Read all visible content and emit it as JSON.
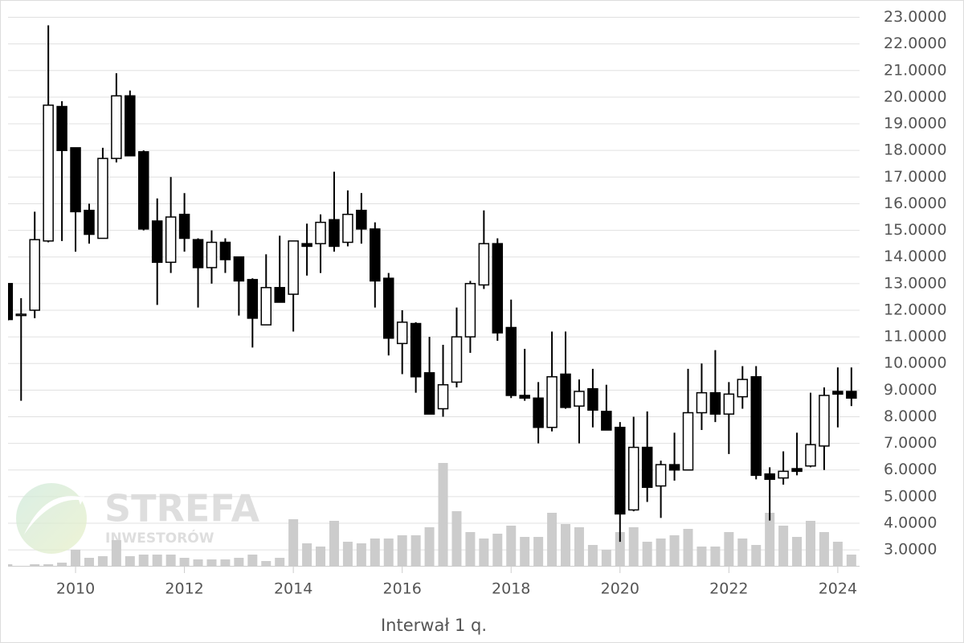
{
  "chart_data": {
    "type": "candlestick",
    "x_label": "Interwał 1 q.",
    "watermark": {
      "title": "STREFA",
      "subtitle": "INWESTORÓW"
    },
    "up_color": "#ffffff",
    "down_color": "#000000",
    "edge_color": "#000000",
    "volume_color": "#cccccc",
    "grid": true,
    "x": [
      2008.75,
      2009,
      2009.25,
      2009.5,
      2009.75,
      2010,
      2010.25,
      2010.5,
      2010.75,
      2011,
      2011.25,
      2011.5,
      2011.75,
      2012,
      2012.25,
      2012.5,
      2012.75,
      2013,
      2013.25,
      2013.5,
      2013.75,
      2014,
      2014.25,
      2014.5,
      2014.75,
      2015,
      2015.25,
      2015.5,
      2015.75,
      2016,
      2016.25,
      2016.5,
      2016.75,
      2017,
      2017.25,
      2017.5,
      2017.75,
      2018,
      2018.25,
      2018.5,
      2018.75,
      2019,
      2019.25,
      2019.5,
      2019.75,
      2020,
      2020.25,
      2020.5,
      2020.75,
      2021,
      2021.25,
      2021.5,
      2021.75,
      2022,
      2022.25,
      2022.5,
      2022.75,
      2023,
      2023.25,
      2023.5,
      2023.75,
      2024,
      2024.25
    ],
    "open": [
      13.0,
      11.8,
      12.0,
      14.6,
      19.65,
      18.1,
      15.75,
      14.7,
      17.7,
      20.05,
      17.95,
      15.35,
      13.8,
      15.6,
      14.65,
      13.6,
      14.55,
      14.0,
      13.15,
      11.45,
      12.85,
      12.6,
      14.5,
      14.5,
      15.4,
      14.55,
      15.75,
      15.05,
      13.2,
      10.75,
      11.5,
      9.65,
      8.3,
      9.3,
      11.0,
      12.95,
      14.5,
      11.35,
      8.8,
      8.7,
      7.6,
      9.6,
      8.4,
      9.05,
      8.2,
      7.6,
      4.5,
      6.85,
      5.4,
      6.2,
      6.0,
      8.15,
      8.9,
      8.1,
      8.75,
      9.5,
      5.85,
      5.7,
      6.05,
      6.15,
      6.9,
      8.95,
      8.95
    ],
    "high": [
      13.0,
      12.45,
      15.7,
      22.7,
      19.85,
      18.1,
      16.0,
      18.1,
      20.9,
      20.25,
      18.0,
      16.2,
      17.0,
      16.4,
      14.7,
      15.0,
      14.7,
      14.0,
      13.2,
      14.1,
      14.8,
      14.6,
      15.25,
      15.6,
      17.2,
      16.5,
      16.4,
      15.3,
      13.4,
      12.0,
      11.55,
      11.0,
      10.7,
      12.1,
      13.1,
      15.75,
      14.7,
      12.4,
      10.55,
      9.3,
      11.2,
      11.2,
      9.4,
      9.8,
      9.2,
      7.8,
      8.0,
      8.2,
      6.35,
      7.4,
      9.8,
      10.0,
      10.5,
      9.3,
      9.9,
      9.9,
      6.1,
      6.7,
      7.4,
      8.9,
      9.1,
      9.85,
      9.85
    ],
    "low": [
      11.6,
      8.6,
      11.7,
      14.55,
      14.6,
      14.2,
      14.5,
      14.7,
      17.55,
      17.8,
      15.0,
      12.2,
      13.4,
      14.2,
      12.1,
      13.0,
      13.4,
      11.8,
      10.6,
      11.45,
      12.3,
      11.2,
      13.3,
      13.4,
      14.2,
      14.4,
      14.5,
      12.1,
      10.3,
      9.6,
      8.9,
      8.1,
      8.0,
      9.1,
      10.4,
      12.8,
      10.85,
      8.7,
      8.6,
      7.0,
      7.45,
      8.3,
      7.0,
      7.6,
      7.5,
      3.3,
      4.45,
      4.8,
      4.2,
      5.6,
      6.0,
      7.5,
      7.8,
      6.6,
      8.3,
      5.65,
      4.1,
      5.45,
      5.8,
      6.1,
      6.0,
      7.6,
      8.4
    ],
    "close": [
      11.65,
      11.85,
      14.65,
      19.7,
      18.0,
      15.7,
      14.85,
      17.7,
      20.05,
      17.8,
      15.05,
      13.8,
      15.5,
      14.7,
      13.6,
      14.55,
      13.9,
      13.1,
      11.7,
      12.85,
      12.3,
      14.6,
      14.4,
      15.3,
      14.4,
      15.6,
      15.05,
      13.1,
      10.95,
      11.55,
      9.5,
      8.1,
      9.2,
      11.0,
      13.0,
      14.5,
      11.15,
      8.8,
      8.7,
      7.6,
      9.5,
      8.35,
      8.95,
      8.25,
      7.5,
      4.35,
      6.85,
      5.35,
      6.2,
      6.0,
      8.15,
      8.9,
      8.1,
      8.85,
      9.4,
      5.8,
      5.65,
      5.95,
      5.95,
      6.95,
      8.8,
      8.85,
      8.7
    ],
    "volume": [
      2,
      0,
      2,
      2,
      4,
      20,
      10,
      12,
      32,
      12,
      14,
      14,
      14,
      10,
      8,
      8,
      8,
      10,
      14,
      6,
      10,
      58,
      28,
      24,
      56,
      30,
      28,
      34,
      34,
      38,
      38,
      48,
      128,
      68,
      42,
      34,
      40,
      50,
      36,
      36,
      66,
      52,
      48,
      26,
      20,
      42,
      48,
      30,
      34,
      38,
      46,
      24,
      24,
      42,
      34,
      26,
      66,
      50,
      36,
      56,
      42,
      30,
      14
    ],
    "xlim": [
      2008.76,
      2024.4
    ],
    "xticks": [
      2010,
      2012,
      2014,
      2016,
      2018,
      2020,
      2022,
      2024
    ],
    "ylim": [
      2.4,
      23.65
    ],
    "yticks": [
      {
        "value": 3,
        "label": "3.0000"
      },
      {
        "value": 4,
        "label": "4.0000"
      },
      {
        "value": 5,
        "label": "5.0000"
      },
      {
        "value": 6,
        "label": "6.0000"
      },
      {
        "value": 7,
        "label": "7.0000"
      },
      {
        "value": 8,
        "label": "8.0000"
      },
      {
        "value": 9,
        "label": "9.0000"
      },
      {
        "value": 10,
        "label": "10.0000"
      },
      {
        "value": 11,
        "label": "11.0000"
      },
      {
        "value": 12,
        "label": "12.0000"
      },
      {
        "value": 13,
        "label": "13.0000"
      },
      {
        "value": 14,
        "label": "14.0000"
      },
      {
        "value": 15,
        "label": "15.0000"
      },
      {
        "value": 16,
        "label": "16.0000"
      },
      {
        "value": 17,
        "label": "17.0000"
      },
      {
        "value": 18,
        "label": "18.0000"
      },
      {
        "value": 19,
        "label": "19.0000"
      },
      {
        "value": 20,
        "label": "20.0000"
      },
      {
        "value": 21,
        "label": "21.0000"
      },
      {
        "value": 22,
        "label": "22.0000"
      },
      {
        "value": 23,
        "label": "23.0000"
      }
    ]
  }
}
